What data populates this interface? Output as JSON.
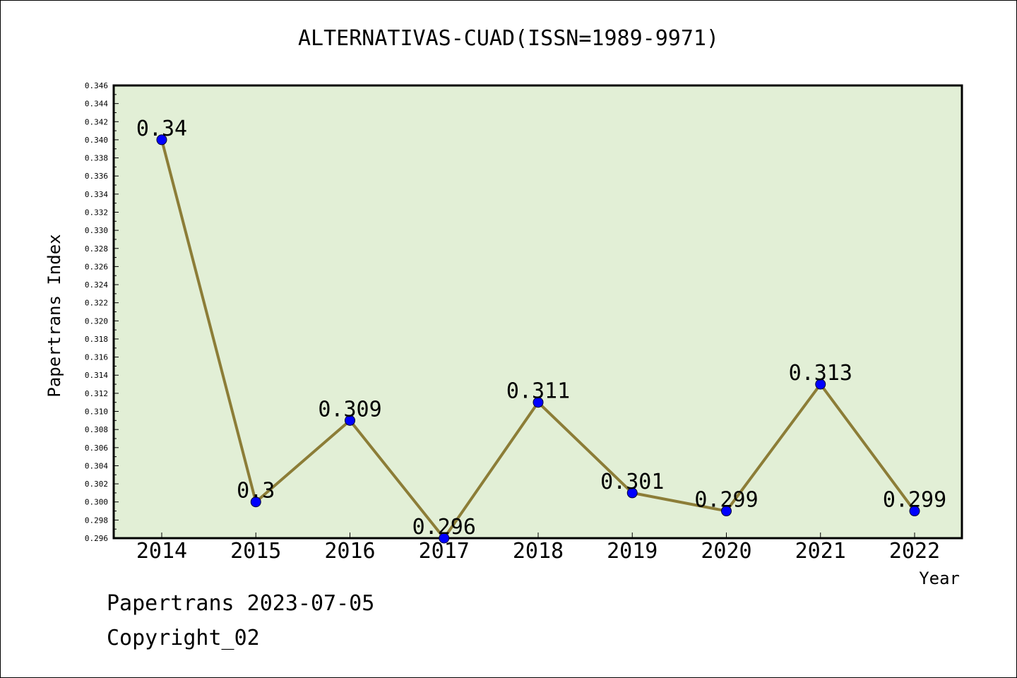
{
  "chart_data": {
    "type": "line",
    "title": "ALTERNATIVAS-CUAD(ISSN=1989-9971)",
    "xlabel": "Year",
    "ylabel": "Papertrans Index",
    "categories": [
      "2014",
      "2015",
      "2016",
      "2017",
      "2018",
      "2019",
      "2020",
      "2021",
      "2022"
    ],
    "series": [
      {
        "values": [
          0.34,
          0.3,
          0.309,
          0.296,
          0.311,
          0.301,
          0.299,
          0.313,
          0.299
        ],
        "labels": [
          "0.34",
          "0.3",
          "0.309",
          "0.296",
          "0.311",
          "0.301",
          "0.299",
          "0.313",
          "0.299"
        ]
      }
    ],
    "ylim": [
      0.296,
      0.346
    ],
    "ytick_step": 0.002,
    "ytick_labels": [
      "0.296",
      "0.298",
      "0.300",
      "0.302",
      "0.304",
      "0.306",
      "0.308",
      "0.310",
      "0.312",
      "0.314",
      "0.316",
      "0.318",
      "0.320",
      "0.322",
      "0.324",
      "0.326",
      "0.328",
      "0.330",
      "0.332",
      "0.334",
      "0.336",
      "0.338",
      "0.340",
      "0.342",
      "0.344",
      "0.346"
    ],
    "grid": false,
    "legend": "none",
    "colors": {
      "plot_background": "#e2efd6",
      "line": "#8c7d37",
      "marker": "#0000ff",
      "axis": "#000000"
    }
  },
  "footer": {
    "date_text": "Papertrans 2023-07-05",
    "copyright_text": "Copyright_02"
  }
}
